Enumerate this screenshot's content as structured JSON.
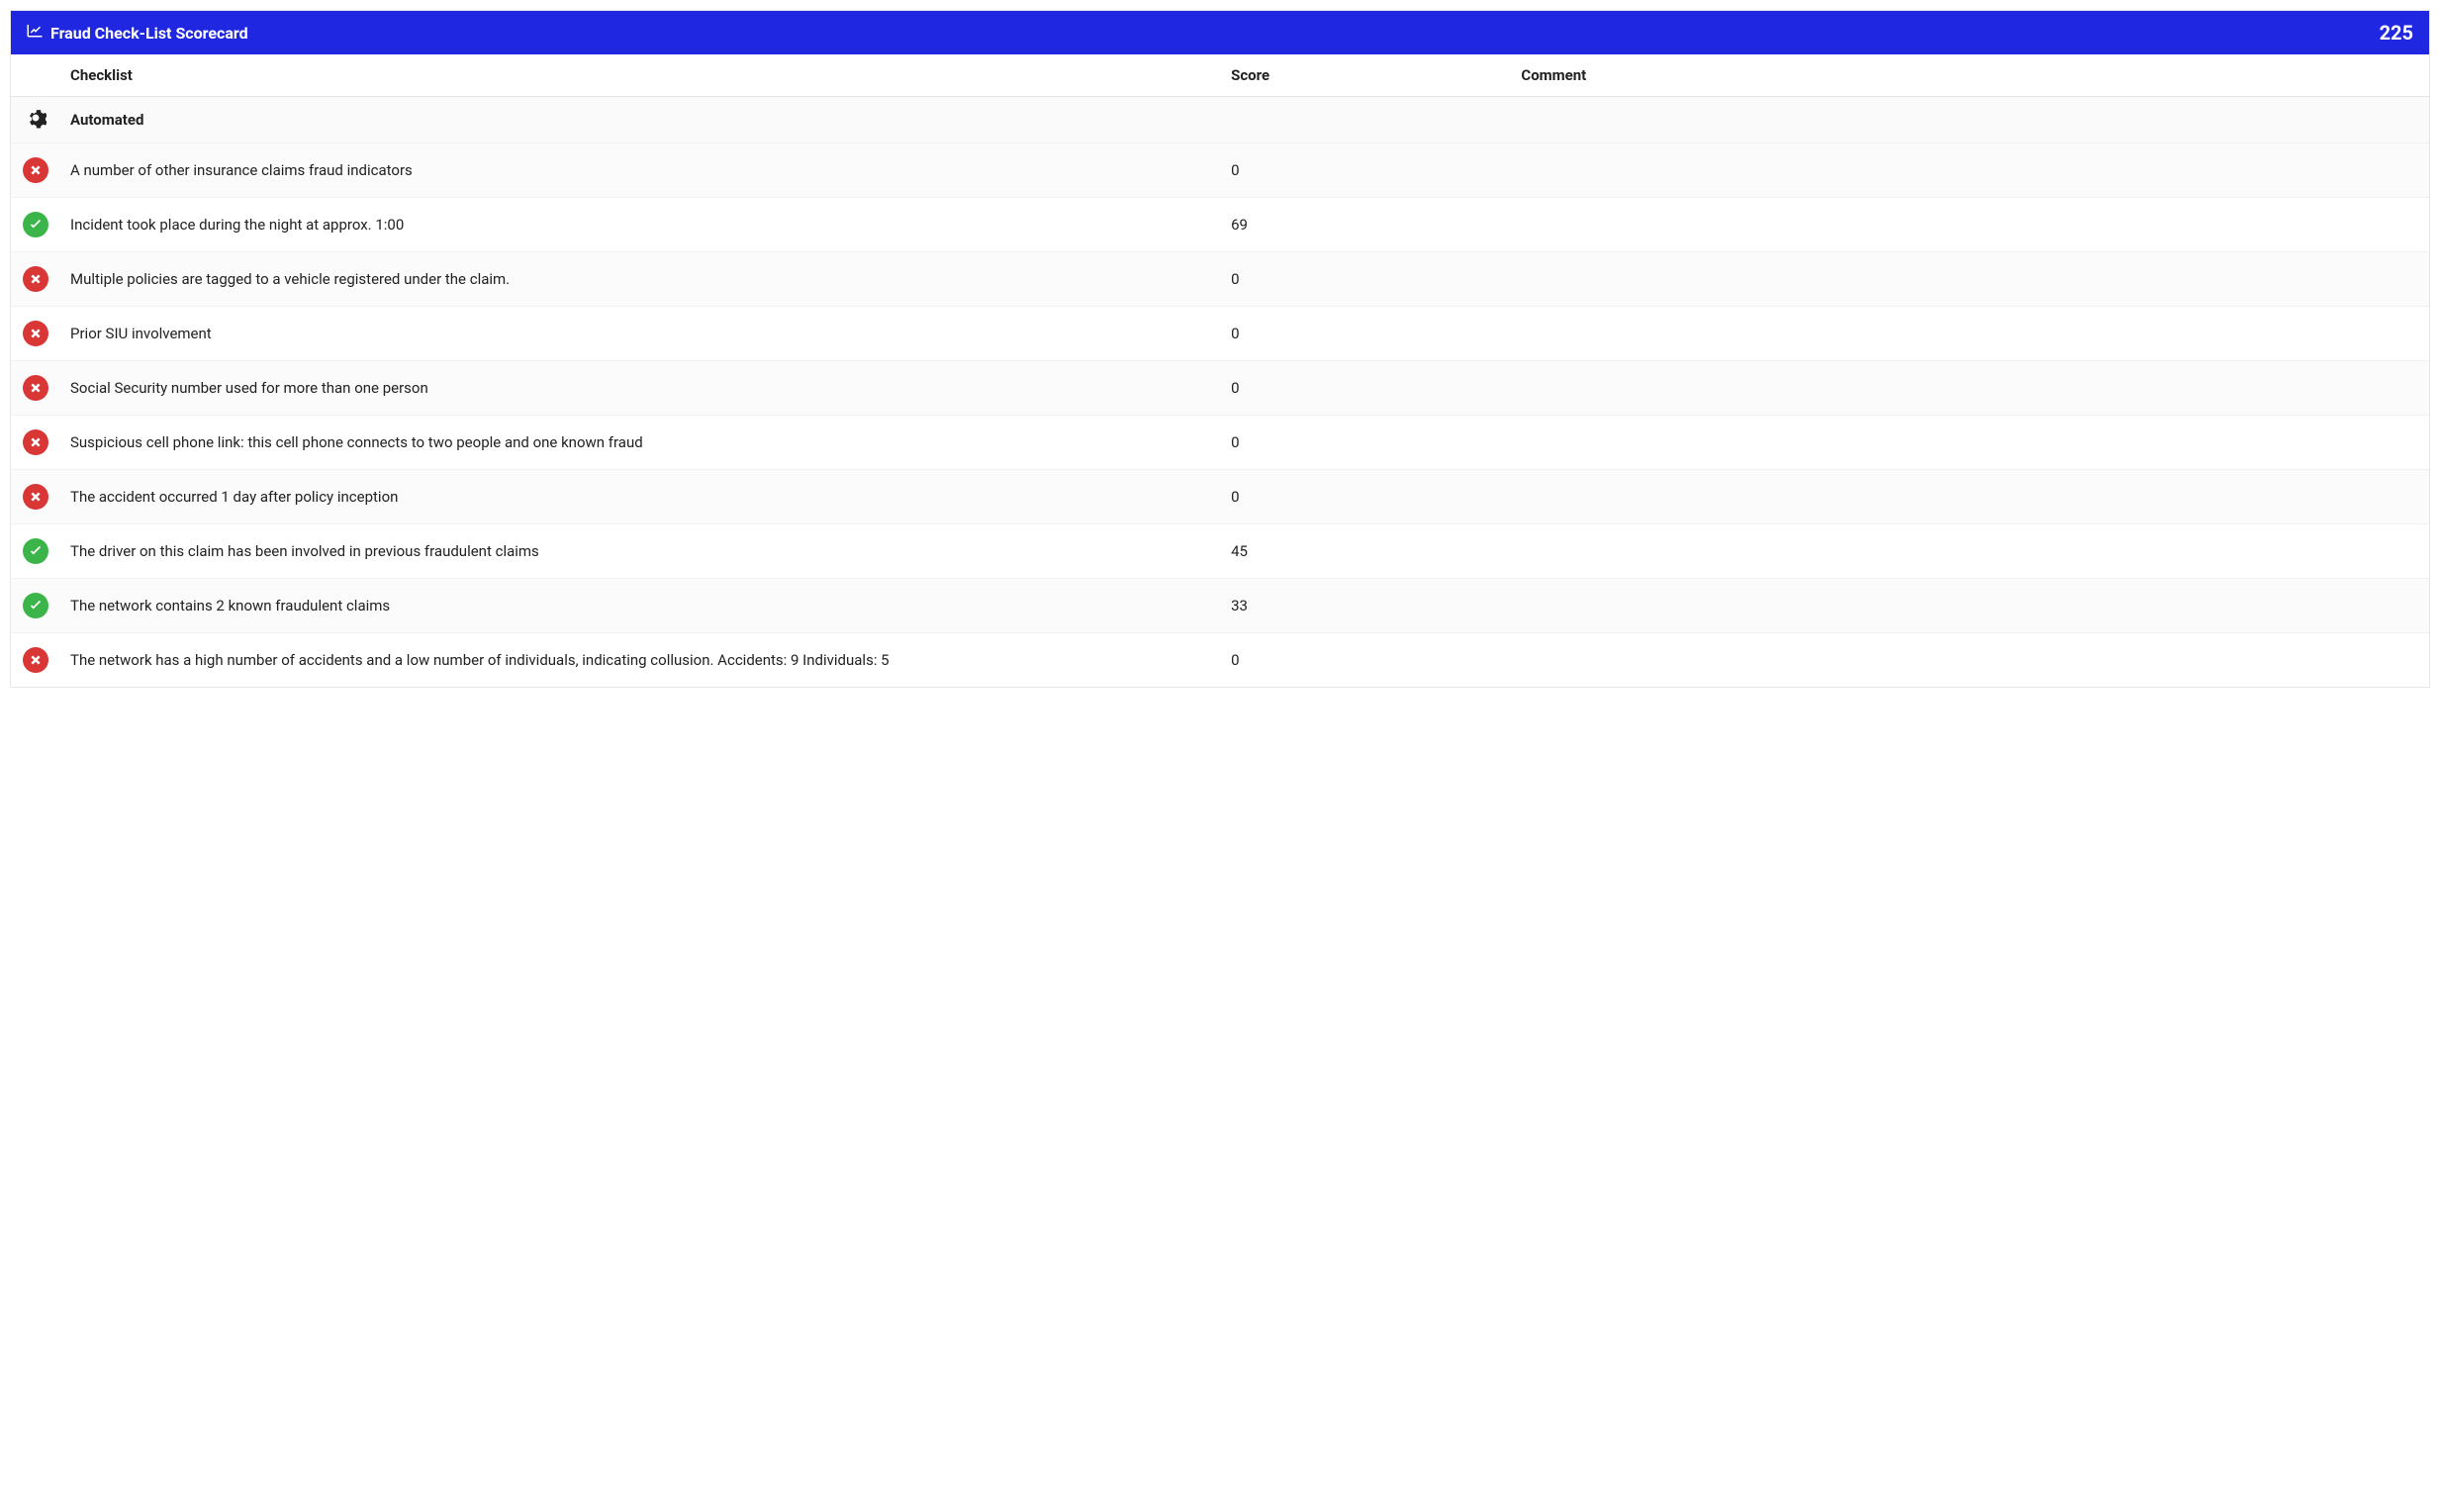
{
  "header": {
    "title": "Fraud Check-List Scorecard",
    "total_score": "225",
    "background_color": "#1f27e0",
    "text_color": "#ffffff"
  },
  "columns": {
    "checklist": "Checklist",
    "score": "Score",
    "comment": "Comment"
  },
  "section": {
    "label": "Automated"
  },
  "status_colors": {
    "pass": "#3bb54a",
    "fail": "#d93636"
  },
  "rows": [
    {
      "status": "fail",
      "text": "A number of other insurance claims fraud indicators",
      "score": "0",
      "comment": ""
    },
    {
      "status": "pass",
      "text": "Incident took place during the night at approx. 1:00",
      "score": "69",
      "comment": ""
    },
    {
      "status": "fail",
      "text": "Multiple policies are tagged to a vehicle registered under the claim.",
      "score": "0",
      "comment": ""
    },
    {
      "status": "fail",
      "text": "Prior SIU involvement",
      "score": "0",
      "comment": ""
    },
    {
      "status": "fail",
      "text": "Social Security number used for more than one person",
      "score": "0",
      "comment": ""
    },
    {
      "status": "fail",
      "text": "Suspicious cell phone link: this cell phone connects to two people and one known fraud",
      "score": "0",
      "comment": ""
    },
    {
      "status": "fail",
      "text": "The accident occurred 1 day after policy inception",
      "score": "0",
      "comment": ""
    },
    {
      "status": "pass",
      "text": "The driver on this claim has been involved in previous fraudulent claims",
      "score": "45",
      "comment": ""
    },
    {
      "status": "pass",
      "text": "The network contains 2 known fraudulent claims",
      "score": "33",
      "comment": ""
    },
    {
      "status": "fail",
      "text": "The network has a high number of accidents and a low number of individuals, indicating collusion. Accidents: 9 Individuals: 5",
      "score": "0",
      "comment": ""
    }
  ]
}
